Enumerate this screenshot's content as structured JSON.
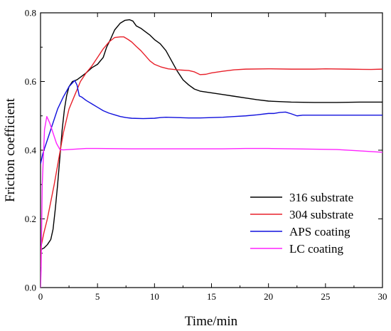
{
  "chart_data": {
    "type": "line",
    "title": "",
    "xlabel": "Time/min",
    "ylabel": "Friction coefficient",
    "xlim": [
      0,
      30
    ],
    "ylim": [
      0,
      0.8
    ],
    "x_ticks": [
      0,
      5,
      10,
      15,
      20,
      25,
      30
    ],
    "y_ticks": [
      0.0,
      0.2,
      0.4,
      0.6,
      0.8
    ],
    "x_tick_labels": [
      "0",
      "5",
      "10",
      "15",
      "20",
      "25",
      "30"
    ],
    "y_tick_labels": [
      "0.0",
      "0.2",
      "0.4",
      "0.6",
      "0.8"
    ],
    "grid": false,
    "legend_position": "bottom-right",
    "series": [
      {
        "name": "316 substrate",
        "color": "#000000",
        "points": [
          [
            0,
            0.1
          ],
          [
            0.1,
            0.112
          ],
          [
            0.3,
            0.115
          ],
          [
            0.6,
            0.125
          ],
          [
            0.9,
            0.14
          ],
          [
            1.1,
            0.17
          ],
          [
            1.3,
            0.23
          ],
          [
            1.5,
            0.3
          ],
          [
            1.7,
            0.38
          ],
          [
            1.9,
            0.46
          ],
          [
            2.1,
            0.52
          ],
          [
            2.3,
            0.56
          ],
          [
            2.5,
            0.585
          ],
          [
            2.8,
            0.6
          ],
          [
            3.2,
            0.605
          ],
          [
            3.6,
            0.615
          ],
          [
            4,
            0.625
          ],
          [
            4.5,
            0.64
          ],
          [
            5,
            0.65
          ],
          [
            5.5,
            0.67
          ],
          [
            5.8,
            0.7
          ],
          [
            6.1,
            0.72
          ],
          [
            6.5,
            0.75
          ],
          [
            7,
            0.77
          ],
          [
            7.4,
            0.778
          ],
          [
            7.8,
            0.78
          ],
          [
            8.1,
            0.776
          ],
          [
            8.4,
            0.762
          ],
          [
            8.8,
            0.755
          ],
          [
            9.2,
            0.745
          ],
          [
            9.6,
            0.735
          ],
          [
            10,
            0.722
          ],
          [
            10.5,
            0.71
          ],
          [
            11,
            0.69
          ],
          [
            11.5,
            0.66
          ],
          [
            12,
            0.63
          ],
          [
            12.5,
            0.605
          ],
          [
            13,
            0.59
          ],
          [
            13.5,
            0.578
          ],
          [
            14,
            0.572
          ],
          [
            15,
            0.567
          ],
          [
            16,
            0.562
          ],
          [
            17,
            0.557
          ],
          [
            18,
            0.552
          ],
          [
            19,
            0.547
          ],
          [
            20,
            0.543
          ],
          [
            22,
            0.54
          ],
          [
            24,
            0.539
          ],
          [
            26,
            0.539
          ],
          [
            28,
            0.54
          ],
          [
            30,
            0.54
          ]
        ]
      },
      {
        "name": "304 substrate",
        "color": "#e8202a",
        "points": [
          [
            0,
            0.06
          ],
          [
            0.05,
            0.12
          ],
          [
            0.3,
            0.16
          ],
          [
            0.6,
            0.2
          ],
          [
            1.2,
            0.3
          ],
          [
            2,
            0.45
          ],
          [
            2.5,
            0.52
          ],
          [
            3,
            0.56
          ],
          [
            3.5,
            0.6
          ],
          [
            4,
            0.625
          ],
          [
            4.5,
            0.645
          ],
          [
            5,
            0.67
          ],
          [
            5.5,
            0.695
          ],
          [
            6,
            0.715
          ],
          [
            6.5,
            0.728
          ],
          [
            7,
            0.73
          ],
          [
            7.3,
            0.73
          ],
          [
            7.7,
            0.722
          ],
          [
            8,
            0.715
          ],
          [
            8.4,
            0.702
          ],
          [
            8.8,
            0.69
          ],
          [
            9.2,
            0.675
          ],
          [
            9.6,
            0.66
          ],
          [
            10,
            0.65
          ],
          [
            10.6,
            0.642
          ],
          [
            11.2,
            0.637
          ],
          [
            12,
            0.634
          ],
          [
            13,
            0.632
          ],
          [
            13.5,
            0.628
          ],
          [
            14,
            0.62
          ],
          [
            14.5,
            0.621
          ],
          [
            15,
            0.625
          ],
          [
            16,
            0.63
          ],
          [
            17,
            0.634
          ],
          [
            18,
            0.636
          ],
          [
            20,
            0.637
          ],
          [
            22,
            0.636
          ],
          [
            24,
            0.636
          ],
          [
            25,
            0.637
          ],
          [
            27,
            0.636
          ],
          [
            29,
            0.635
          ],
          [
            30,
            0.636
          ]
        ]
      },
      {
        "name": "APS coating",
        "color": "#1010dd",
        "points": [
          [
            0,
            0.36
          ],
          [
            0.2,
            0.39
          ],
          [
            0.5,
            0.42
          ],
          [
            1,
            0.47
          ],
          [
            1.5,
            0.52
          ],
          [
            2,
            0.555
          ],
          [
            2.5,
            0.585
          ],
          [
            3,
            0.603
          ],
          [
            3.2,
            0.59
          ],
          [
            3.4,
            0.558
          ],
          [
            3.6,
            0.555
          ],
          [
            4,
            0.545
          ],
          [
            4.5,
            0.535
          ],
          [
            5,
            0.525
          ],
          [
            5.5,
            0.515
          ],
          [
            6,
            0.508
          ],
          [
            6.5,
            0.503
          ],
          [
            7,
            0.498
          ],
          [
            7.5,
            0.495
          ],
          [
            8,
            0.493
          ],
          [
            9,
            0.492
          ],
          [
            10,
            0.493
          ],
          [
            10.5,
            0.495
          ],
          [
            11,
            0.496
          ],
          [
            12,
            0.495
          ],
          [
            13,
            0.494
          ],
          [
            14,
            0.494
          ],
          [
            15,
            0.495
          ],
          [
            16,
            0.496
          ],
          [
            17,
            0.498
          ],
          [
            18,
            0.5
          ],
          [
            19,
            0.503
          ],
          [
            20,
            0.507
          ],
          [
            20.5,
            0.507
          ],
          [
            21,
            0.51
          ],
          [
            21.5,
            0.511
          ],
          [
            22,
            0.506
          ],
          [
            22.5,
            0.5
          ],
          [
            23,
            0.502
          ],
          [
            24,
            0.502
          ],
          [
            26,
            0.502
          ],
          [
            28,
            0.502
          ],
          [
            30,
            0.502
          ]
        ]
      },
      {
        "name": "LC coating",
        "color": "#ff22ff",
        "points": [
          [
            0,
            0.0
          ],
          [
            0.05,
            0.05
          ],
          [
            0.15,
            0.3
          ],
          [
            0.35,
            0.46
          ],
          [
            0.55,
            0.498
          ],
          [
            0.8,
            0.48
          ],
          [
            1.1,
            0.45
          ],
          [
            1.4,
            0.42
          ],
          [
            1.7,
            0.402
          ],
          [
            2,
            0.401
          ],
          [
            3,
            0.403
          ],
          [
            4,
            0.405
          ],
          [
            5,
            0.405
          ],
          [
            8,
            0.404
          ],
          [
            10,
            0.404
          ],
          [
            13,
            0.404
          ],
          [
            16,
            0.404
          ],
          [
            18,
            0.405
          ],
          [
            20,
            0.405
          ],
          [
            22,
            0.404
          ],
          [
            24,
            0.403
          ],
          [
            26,
            0.402
          ],
          [
            28,
            0.398
          ],
          [
            29,
            0.396
          ],
          [
            30,
            0.394
          ]
        ]
      }
    ]
  }
}
